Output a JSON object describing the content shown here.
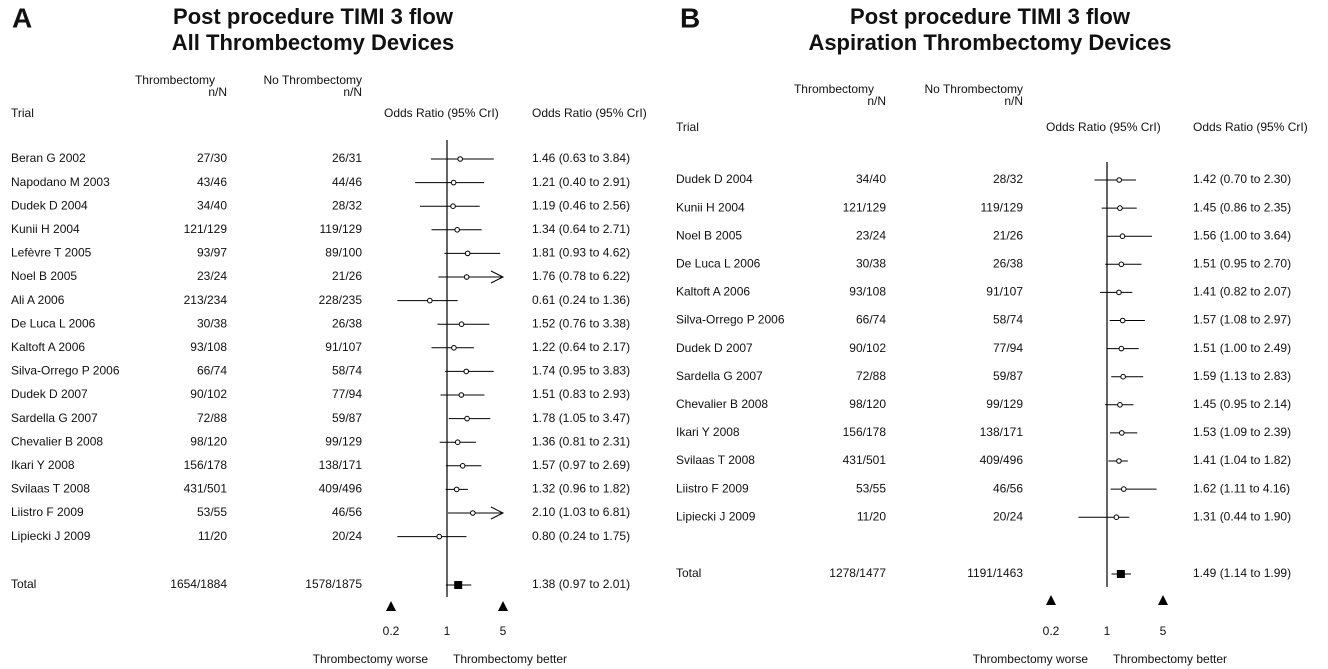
{
  "chart_data": [
    {
      "type": "forest",
      "panel_label": "A",
      "title": "Post procedure TIMI 3 flow",
      "subtitle": "All Thrombectomy Devices",
      "columns": {
        "trial": "Trial",
        "treatment": [
          "Thrombectomy",
          "n/N"
        ],
        "control": [
          "No Thrombectomy",
          "n/N"
        ],
        "plot": "Odds Ratio (95% CrI)",
        "estimate": "Odds Ratio (95% CrI)"
      },
      "categories": [
        "Beran G 2002",
        "Napodano M 2003",
        "Dudek D 2004",
        "Kunii H 2004",
        "Lefèvre T 2005",
        "Noel B 2005",
        "Ali A 2006",
        "De Luca L 2006",
        "Kaltoft A 2006",
        "Silva-Orrego P 2006",
        "Dudek D 2007",
        "Sardella G 2007",
        "Chevalier B 2008",
        "Ikari Y 2008",
        "Svilaas T 2008",
        "Liistro F 2009",
        "Lipiecki J 2009"
      ],
      "treatment": [
        "27/30",
        "43/46",
        "34/40",
        "121/129",
        "93/97",
        "23/24",
        "213/234",
        "30/38",
        "93/108",
        "66/74",
        "90/102",
        "72/88",
        "98/120",
        "156/178",
        "431/501",
        "53/55",
        "11/20"
      ],
      "control": [
        "26/31",
        "44/46",
        "28/32",
        "119/129",
        "89/100",
        "21/26",
        "228/235",
        "26/38",
        "91/107",
        "58/74",
        "77/94",
        "59/87",
        "99/129",
        "138/171",
        "409/496",
        "46/56",
        "20/24"
      ],
      "values": [
        1.46,
        1.21,
        1.19,
        1.34,
        1.81,
        1.76,
        0.61,
        1.52,
        1.22,
        1.74,
        1.51,
        1.78,
        1.36,
        1.57,
        1.32,
        2.1,
        0.8
      ],
      "lower": [
        0.63,
        0.4,
        0.46,
        0.64,
        0.93,
        0.78,
        0.24,
        0.76,
        0.64,
        0.95,
        0.83,
        1.05,
        0.81,
        0.97,
        0.96,
        1.03,
        0.24
      ],
      "upper": [
        3.84,
        2.91,
        2.56,
        2.71,
        4.62,
        6.22,
        1.36,
        3.38,
        2.17,
        3.83,
        2.93,
        3.47,
        2.31,
        2.69,
        1.82,
        6.81,
        1.75
      ],
      "value_labels": [
        "1.46 (0.63 to 3.84)",
        "1.21 (0.40 to 2.91)",
        "1.19 (0.46 to 2.56)",
        "1.34 (0.64 to 2.71)",
        "1.81 (0.93 to 4.62)",
        "1.76 (0.78 to 6.22)",
        "0.61 (0.24 to 1.36)",
        "1.52 (0.76 to 3.38)",
        "1.22 (0.64 to 2.17)",
        "1.74 (0.95 to 3.83)",
        "1.51 (0.83 to 2.93)",
        "1.78 (1.05 to 3.47)",
        "1.36 (0.81 to 2.31)",
        "1.57 (0.97 to 2.69)",
        "1.32 (0.96 to 1.82)",
        "2.10 (1.03 to 6.81)",
        "0.80 (0.24 to 1.75)"
      ],
      "total": {
        "name": "Total",
        "treatment": "1654/1884",
        "control": "1578/1875",
        "value": 1.38,
        "lower": 0.97,
        "upper": 2.01,
        "value_label": "1.38 (0.97 to 2.01)"
      },
      "xlim": [
        0.2,
        5
      ],
      "xticks": [
        0.2,
        1,
        5
      ],
      "log_x": true,
      "reference_line": 1,
      "xlabel_left": "Thrombectomy worse",
      "xlabel_right": "Thrombectomy better"
    },
    {
      "type": "forest",
      "panel_label": "B",
      "title": "Post procedure TIMI 3 flow",
      "subtitle": "Aspiration Thrombectomy Devices",
      "columns": {
        "trial": "Trial",
        "treatment": [
          "Thrombectomy",
          "n/N"
        ],
        "control": [
          "No Thrombectomy",
          "n/N"
        ],
        "plot": "Odds Ratio (95% CrI)",
        "estimate": "Odds Ratio (95% CrI)"
      },
      "categories": [
        "Dudek D 2004",
        "Kunii H 2004",
        "Noel B 2005",
        "De Luca L 2006",
        "Kaltoft A 2006",
        "Silva-Orrego P 2006",
        "Dudek D 2007",
        "Sardella G 2007",
        "Chevalier B 2008",
        "Ikari Y 2008",
        "Svilaas T 2008",
        "Liistro F 2009",
        "Lipiecki J 2009"
      ],
      "treatment": [
        "34/40",
        "121/129",
        "23/24",
        "30/38",
        "93/108",
        "66/74",
        "90/102",
        "72/88",
        "98/120",
        "156/178",
        "431/501",
        "53/55",
        "11/20"
      ],
      "control": [
        "28/32",
        "119/129",
        "21/26",
        "26/38",
        "91/107",
        "58/74",
        "77/94",
        "59/87",
        "99/129",
        "138/171",
        "409/496",
        "46/56",
        "20/24"
      ],
      "values": [
        1.42,
        1.45,
        1.56,
        1.51,
        1.41,
        1.57,
        1.51,
        1.59,
        1.45,
        1.53,
        1.41,
        1.62,
        1.31
      ],
      "lower": [
        0.7,
        0.86,
        1.0,
        0.95,
        0.82,
        1.08,
        1.0,
        1.13,
        0.95,
        1.09,
        1.04,
        1.11,
        0.44
      ],
      "upper": [
        2.3,
        2.35,
        3.64,
        2.7,
        2.07,
        2.97,
        2.49,
        2.83,
        2.14,
        2.39,
        1.82,
        4.16,
        1.9
      ],
      "value_labels": [
        "1.42 (0.70 to 2.30)",
        "1.45 (0.86 to 2.35)",
        "1.56 (1.00 to 3.64)",
        "1.51 (0.95 to 2.70)",
        "1.41 (0.82 to 2.07)",
        "1.57 (1.08 to 2.97)",
        "1.51 (1.00 to 2.49)",
        "1.59 (1.13 to 2.83)",
        "1.45 (0.95 to 2.14)",
        "1.53 (1.09 to 2.39)",
        "1.41 (1.04 to 1.82)",
        "1.62 (1.11 to 4.16)",
        "1.31 (0.44 to 1.90)"
      ],
      "total": {
        "name": "Total",
        "treatment": "1278/1477",
        "control": "1191/1463",
        "value": 1.49,
        "lower": 1.14,
        "upper": 1.99,
        "value_label": "1.49 (1.14 to 1.99)"
      },
      "xlim": [
        0.2,
        5
      ],
      "xticks": [
        0.2,
        1,
        5
      ],
      "log_x": true,
      "reference_line": 1,
      "xlabel_left": "Thrombectomy worse",
      "xlabel_right": "Thrombectomy better"
    }
  ]
}
